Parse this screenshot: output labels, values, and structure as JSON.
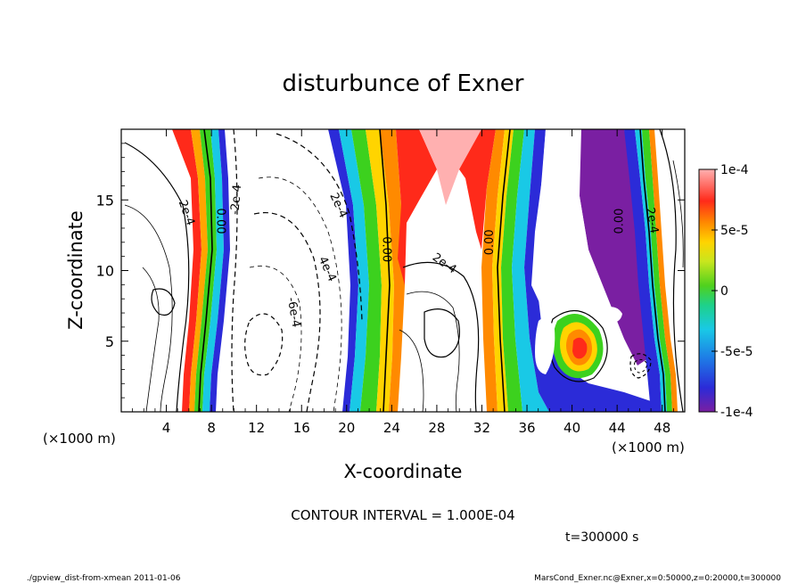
{
  "chart_data": {
    "type": "heatmap",
    "title": "disturbunce of Exner",
    "xlabel": "X-coordinate",
    "ylabel": "Z-coordinate",
    "x_unit": "(×1000 m)",
    "xlim": [
      0,
      50
    ],
    "ylim": [
      0,
      20
    ],
    "xticks": [
      4,
      8,
      12,
      16,
      20,
      24,
      28,
      32,
      36,
      40,
      44,
      48
    ],
    "yticks": [
      5,
      10,
      15
    ],
    "colorbar": {
      "range": [
        -0.0001,
        0.0001
      ],
      "tick_values": [
        0.0001,
        5e-05,
        0,
        -5e-05,
        -0.0001
      ],
      "tick_labels": [
        "1e-4",
        "5e-5",
        "0",
        "-5e-5",
        "-1e-4"
      ]
    },
    "zero_line_positions_x": [
      8,
      23,
      33,
      45
    ],
    "contour_labels": [
      {
        "text": "2e-4",
        "x": 5.5,
        "z": 14,
        "rot": 70
      },
      {
        "text": "0.00",
        "x": 8.5,
        "z": 13.5,
        "rot": 90
      },
      {
        "text": "-2e-4",
        "x": 10.5,
        "z": 15,
        "rot": -85
      },
      {
        "text": "2e-4",
        "x": 19,
        "z": 14.5,
        "rot": 65
      },
      {
        "text": "4e-4",
        "x": 18,
        "z": 10,
        "rot": 65
      },
      {
        "text": "-6e-4",
        "x": 15,
        "z": 7,
        "rot": 80
      },
      {
        "text": "0.00",
        "x": 23.2,
        "z": 11.5,
        "rot": 90
      },
      {
        "text": "2e-4",
        "x": 28.5,
        "z": 10.3,
        "rot": 35
      },
      {
        "text": "0.00",
        "x": 33,
        "z": 12,
        "rot": -90
      },
      {
        "text": "0.00",
        "x": 44.5,
        "z": 13.5,
        "rot": -90
      },
      {
        "text": "2e-4",
        "x": 46.8,
        "z": 13.5,
        "rot": 80
      }
    ],
    "contour_interval_label": "CONTOUR INTERVAL = 1.000E-04",
    "time_label": "t=300000 s"
  },
  "footer": {
    "left": "./gpview_dist-from-xmean  2011-01-06",
    "right": "MarsCond_Exner.nc@Exner,x=0:50000,z=0:20000,t=300000"
  }
}
